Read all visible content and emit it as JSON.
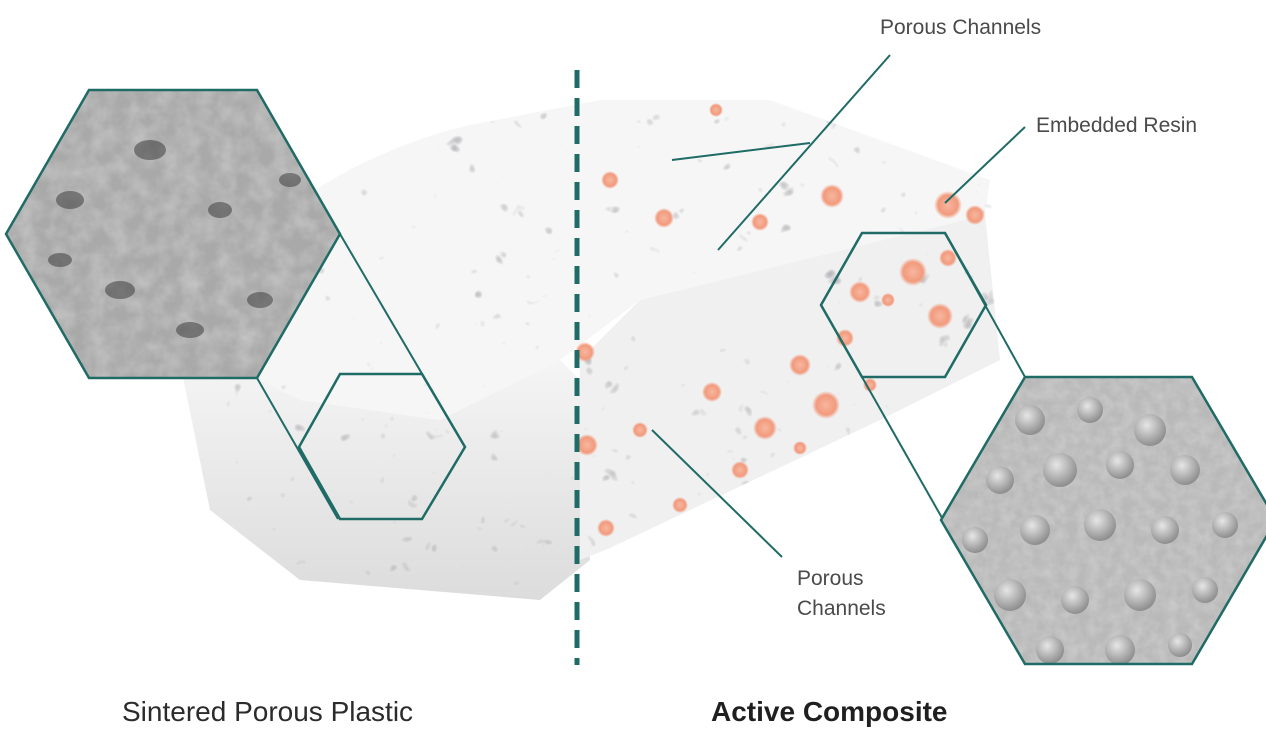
{
  "labels": {
    "porous_channels_top": "Porous Channels",
    "embedded_resin": "Embedded Resin",
    "porous_channels_bottom_line1": "Porous",
    "porous_channels_bottom_line2": "Channels"
  },
  "captions": {
    "left": "Sintered Porous Plastic",
    "right": "Active Composite"
  },
  "colors": {
    "accent_teal": "#1f6b65",
    "resin_orange": "#f29a7d",
    "block_white": "#f4f4f4",
    "sem_gray": "#9a9a9a"
  }
}
